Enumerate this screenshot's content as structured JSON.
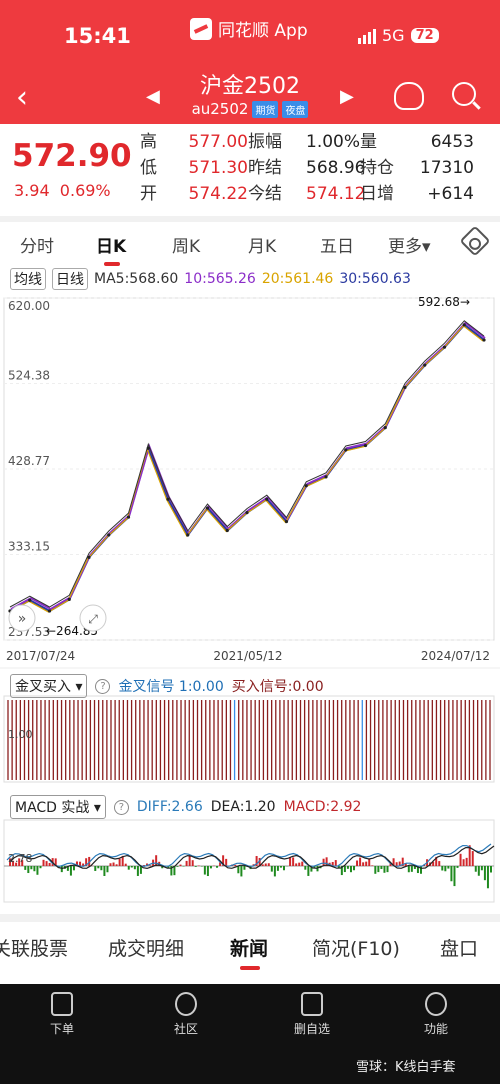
{
  "status": {
    "time": "15:41",
    "app": "同花顺 App",
    "network": "5G",
    "battery": "72"
  },
  "header": {
    "title": "沪金2502",
    "code": "au2502",
    "tag1": "期货",
    "tag2": "夜盘"
  },
  "quote": {
    "price": "572.90",
    "change": "3.94",
    "change_pct": "0.69%",
    "cells": [
      {
        "l": "高",
        "v": "577.00",
        "c": "red"
      },
      {
        "l": "振幅",
        "v": "1.00%",
        "c": "dark"
      },
      {
        "l": "量",
        "v": "6453",
        "c": "dark"
      },
      {
        "l": "低",
        "v": "571.30",
        "c": "red"
      },
      {
        "l": "昨结",
        "v": "568.96",
        "c": "dark"
      },
      {
        "l": "持仓",
        "v": "17310",
        "c": "dark"
      },
      {
        "l": "开",
        "v": "574.22",
        "c": "red"
      },
      {
        "l": "今结",
        "v": "574.12",
        "c": "red"
      },
      {
        "l": "日增",
        "v": "+614",
        "c": "dark"
      }
    ]
  },
  "tabs": [
    "分时",
    "日K",
    "周K",
    "月K",
    "五日",
    "更多▾"
  ],
  "ma": {
    "mode": "均线",
    "period": "日线",
    "ma5": "MA5:568.60",
    "ma10": "10:565.26",
    "ma20": "20:561.46",
    "ma30": "30:560.63"
  },
  "kline": {
    "y_ticks": [
      "620.00",
      "524.38",
      "428.77",
      "333.15",
      "237.53"
    ],
    "x_ticks": [
      "2017/07/24",
      "2021/05/12",
      "2024/07/12"
    ],
    "max_label": "592.68→",
    "min_label": "←264.85"
  },
  "signal": {
    "name": "金叉买入 ▾",
    "buy": "金叉信号 1:0.00",
    "sell": "买入信号:0.00",
    "axis_label": "1.00"
  },
  "macd": {
    "name": "MACD 实战 ▾",
    "diff": "DIFF:2.66",
    "dea": "DEA:1.20",
    "macd": "MACD:2.92",
    "axis_label": "2.78"
  },
  "news_tabs": [
    "关联股票",
    "成交明细",
    "新闻",
    "简况(F10)",
    "盘口"
  ],
  "bottom_nav": [
    "下单",
    "社区",
    "删自选",
    "功能"
  ],
  "watermark": "雪球：K线白手套",
  "chart_data": {
    "type": "line",
    "title": "",
    "x_ticks": [
      "2017/07/24",
      "2021/05/12",
      "2024/07/12"
    ],
    "ylim": [
      237.53,
      620.0
    ],
    "x": [
      "2017-07",
      "2018-01",
      "2018-07",
      "2019-01",
      "2019-07",
      "2020-01",
      "2020-04",
      "2020-08",
      "2020-11",
      "2021-03",
      "2021-05",
      "2021-09",
      "2022-01",
      "2022-04",
      "2022-09",
      "2022-11",
      "2023-02",
      "2023-05",
      "2023-09",
      "2023-12",
      "2024-03",
      "2024-06",
      "2024-09",
      "2024-10",
      "2024-12"
    ],
    "y": [
      270,
      282,
      270,
      283,
      330,
      355,
      375,
      452,
      395,
      355,
      385,
      360,
      380,
      395,
      370,
      410,
      420,
      450,
      455,
      475,
      520,
      545,
      565,
      590,
      573
    ],
    "annotations": [
      "592.68",
      "264.85"
    ]
  }
}
